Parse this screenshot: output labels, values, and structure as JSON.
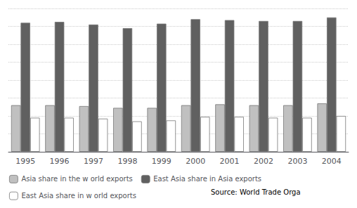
{
  "chart_data": {
    "type": "bar",
    "categories": [
      "1995",
      "1996",
      "1997",
      "1998",
      "1999",
      "2000",
      "2001",
      "2002",
      "2003",
      "2004"
    ],
    "series": [
      {
        "name": "Asia share in the w orld exports",
        "color": "#c0c0c0",
        "values": [
          26.0,
          26.0,
          25.5,
          24.5,
          24.5,
          26.0,
          26.5,
          26.0,
          26.0,
          27.0
        ]
      },
      {
        "name": "East Asia share in Asia exports",
        "color": "#606060",
        "values": [
          72.0,
          72.5,
          71.0,
          69.0,
          71.5,
          74.0,
          73.5,
          73.0,
          73.0,
          75.0
        ]
      },
      {
        "name": "East Asia share in w orld exports",
        "color": "#ffffff",
        "values": [
          19.0,
          19.0,
          18.5,
          17.0,
          17.5,
          19.5,
          19.5,
          19.0,
          19.0,
          20.0
        ]
      }
    ],
    "ylim": [
      0,
      80
    ],
    "yticks": [
      0,
      10,
      20,
      30,
      40,
      50,
      60,
      70,
      80
    ],
    "grid": true,
    "tick_labels": "x",
    "legend": "bottom",
    "annotations": [
      "Source: World Trade Orga"
    ]
  }
}
